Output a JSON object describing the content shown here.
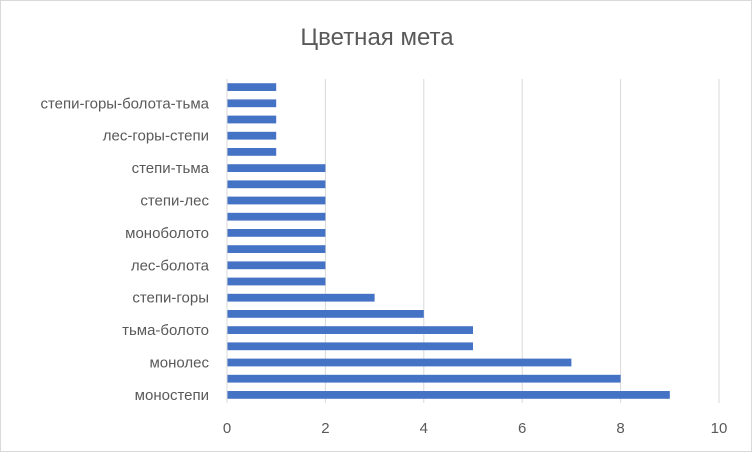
{
  "chart_data": {
    "type": "bar",
    "orientation": "horizontal",
    "title": "Цветная мета",
    "xlabel": "",
    "ylabel": "",
    "xlim": [
      0,
      10
    ],
    "x_ticks": [
      0,
      2,
      4,
      6,
      8,
      10
    ],
    "grid": "vertical",
    "legend": "none",
    "bar_color": "#4472c4",
    "categories": [
      "моностепи",
      "",
      "монолес",
      "",
      "тьма-болото",
      "",
      "степи-горы",
      "",
      "лес-болота",
      "",
      "моноболото",
      "",
      "степи-лес",
      "",
      "степи-тьма",
      "",
      "лес-горы-степи",
      "",
      "степи-горы-болота-тьма",
      ""
    ],
    "values": [
      9,
      8,
      7,
      5,
      5,
      4,
      3,
      2,
      2,
      2,
      2,
      2,
      2,
      2,
      2,
      1,
      1,
      1,
      1,
      1
    ]
  }
}
